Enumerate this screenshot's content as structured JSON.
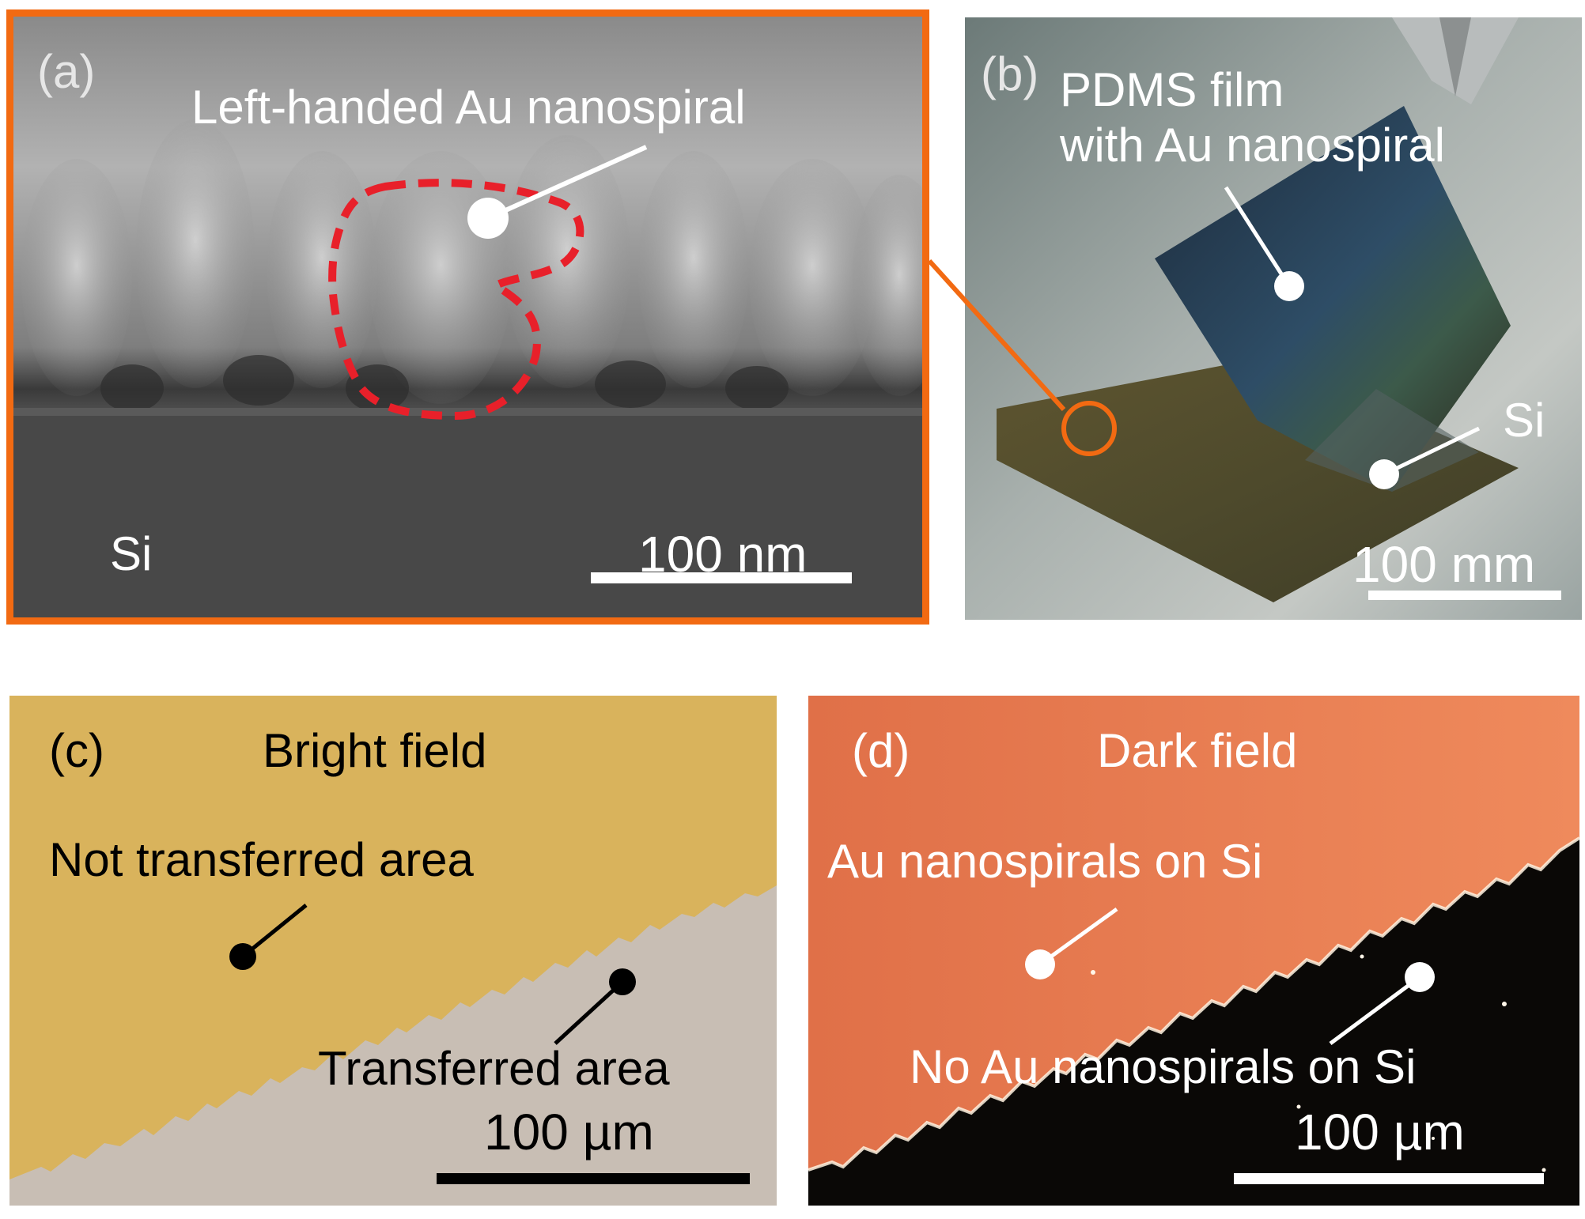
{
  "figure": {
    "panel_a": {
      "label": "(a)",
      "title": "Left-handed Au nanospiral",
      "substrate": "Si",
      "scalebar": "100 nm"
    },
    "panel_b": {
      "label": "(b)",
      "film_line1": "PDMS film",
      "film_line2": "with Au nanospiral",
      "substrate": "Si",
      "scalebar": "100 mm"
    },
    "panel_c": {
      "label": "(c)",
      "mode": "Bright field",
      "not_transferred": "Not transferred area",
      "transferred": "Transferred area",
      "scalebar": "100 µm"
    },
    "panel_d": {
      "label": "(d)",
      "mode": "Dark field",
      "with_spirals": "Au nanospirals on Si",
      "without_spirals": "No Au nanospirals on Si",
      "scalebar": "100 µm"
    }
  },
  "colors": {
    "accent_orange": "#f26a12",
    "dashed_outline": "#e8202a",
    "bright_field_gold": "#d9b35c",
    "transferred_gray": "#c8beb4",
    "dark_field_orange": "#e8764e"
  }
}
